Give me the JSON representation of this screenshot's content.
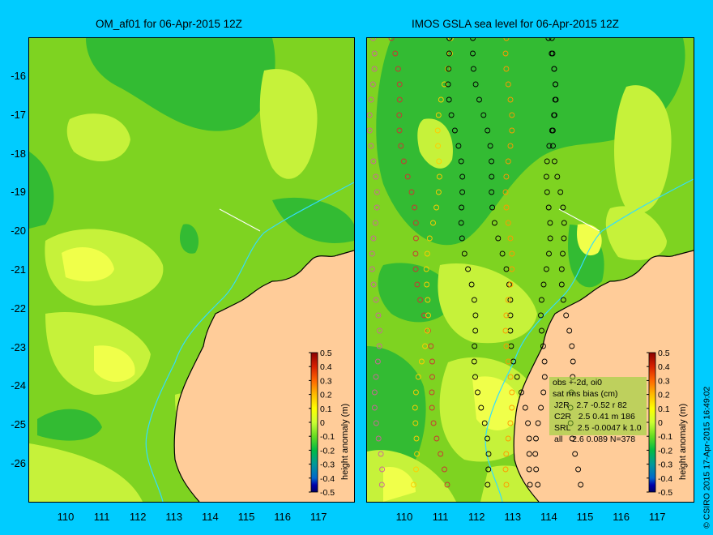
{
  "left_panel": {
    "title": "OM_af01 for 06-Apr-2015 12Z",
    "colorbar_label": "height anomaly (m)"
  },
  "right_panel": {
    "title": "IMOS GSLA sea level  for 06-Apr-2015 12Z",
    "colorbar_label": "height anomaly (m)",
    "stats": {
      "heading": "obs +-2d, oi0",
      "subheading": "sat rms bias (cm)",
      "rows": [
        "J2R   2.7 -0.52 r 82",
        "C2R   2.5 0.41 m 186",
        "SRL   2.5 -0.0047 k 1.0",
        "all    2.6 0.089 N=378"
      ]
    }
  },
  "axes": {
    "y_ticks": [
      "-16",
      "-17",
      "-18",
      "-19",
      "-20",
      "-21",
      "-22",
      "-23",
      "-24",
      "-25",
      "-26"
    ],
    "x_ticks": [
      "110",
      "111",
      "112",
      "113",
      "114",
      "115",
      "116",
      "117"
    ],
    "lon_range": [
      109,
      118
    ],
    "lat_range": [
      -15,
      -27
    ]
  },
  "colorbar": {
    "ticks": [
      "0.5",
      "0.4",
      "0.3",
      "0.2",
      "0.1",
      "0",
      "-0.1",
      "-0.2",
      "-0.3",
      "-0.4",
      "-0.5"
    ],
    "colors": [
      "#8b0000",
      "#d72000",
      "#ff6600",
      "#ffbb00",
      "#ffff00",
      "#ccff33",
      "#66dd22",
      "#00bb44",
      "#009999",
      "#0066cc",
      "#0000aa",
      "#000066"
    ]
  },
  "credit": "© CSIRO 2015  17-Apr-2015 16:49:02",
  "colors": {
    "background": "#00ccff",
    "land": "#ffcc99",
    "coast_line": "#000000",
    "isobath": "#33ddff",
    "field_base": "#7ed321",
    "field_dark": "#33bb33",
    "field_light": "#c6f23a",
    "field_yellow": "#f0ff4a"
  }
}
